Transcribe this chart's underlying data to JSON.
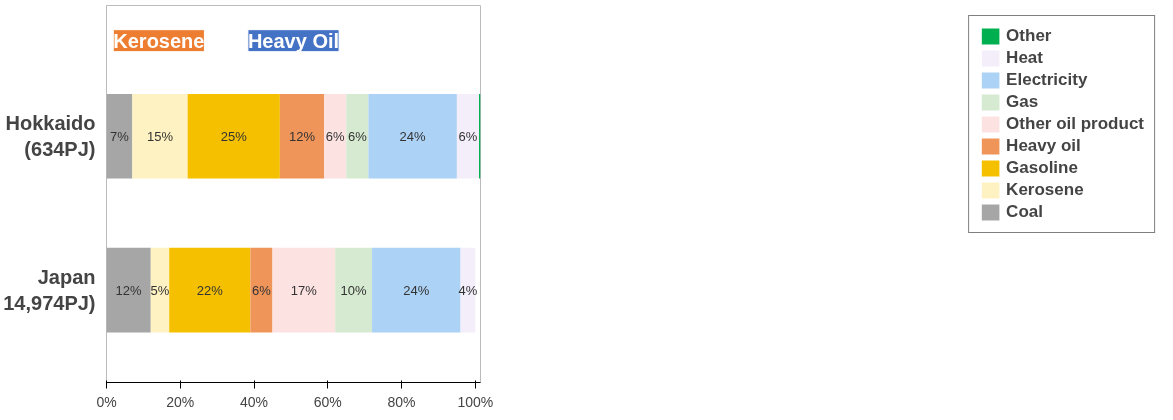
{
  "chart_data": {
    "type": "bar",
    "orientation": "horizontal",
    "stacked": true,
    "categories": [
      "Hokkaido",
      "Japan"
    ],
    "series": [
      {
        "name": "Coal",
        "color": "#a6a6a6",
        "values": [
          7,
          12
        ],
        "value_labels": [
          "7%",
          "12%"
        ]
      },
      {
        "name": "Kerosene",
        "color": "#fff2c2",
        "values": [
          15,
          5
        ],
        "value_labels": [
          "15%",
          "5%"
        ]
      },
      {
        "name": "Gasoline",
        "color": "#f5c000",
        "values": [
          25,
          22
        ],
        "value_labels": [
          "25%",
          "22%"
        ]
      },
      {
        "name": "Heavy oil",
        "color": "#f0955a",
        "values": [
          12,
          6
        ],
        "value_labels": [
          "12%",
          "6%"
        ]
      },
      {
        "name": "Other oil product",
        "color": "#fde2e2",
        "values": [
          6,
          17
        ],
        "value_labels": [
          "6%",
          "17%"
        ]
      },
      {
        "name": "Gas",
        "color": "#d5ead0",
        "values": [
          6,
          10
        ],
        "value_labels": [
          "6%",
          "10%"
        ]
      },
      {
        "name": "Electricity",
        "color": "#acd2f5",
        "values": [
          24,
          24
        ],
        "value_labels": [
          "24%",
          "24%"
        ]
      },
      {
        "name": "Heat",
        "color": "#f3eefa",
        "values": [
          6,
          4
        ],
        "value_labels": [
          "6%",
          "4%"
        ]
      },
      {
        "name": "Other",
        "color": "#00b050",
        "values": [
          0.4,
          0
        ],
        "value_labels": [
          null,
          null
        ]
      }
    ],
    "annotations": [
      "(634PJ)",
      "14,974PJ)",
      "Kerosene",
      "Heavy Oil"
    ],
    "xlim": [
      0,
      101.4
    ],
    "xticks": [
      {
        "value": 0,
        "label": "0%"
      },
      {
        "value": 20,
        "label": "20%"
      },
      {
        "value": 40,
        "label": "40%"
      },
      {
        "value": 60,
        "label": "60%"
      },
      {
        "value": 80,
        "label": "80%"
      },
      {
        "value": 100,
        "label": "100%"
      }
    ],
    "legend": "right",
    "grid": false
  }
}
